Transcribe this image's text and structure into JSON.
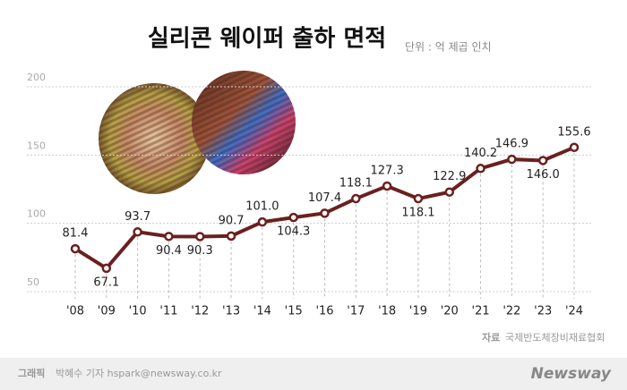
{
  "chart_data": {
    "type": "line",
    "title": "실리콘 웨이퍼 출하 면적",
    "subtitle": "단위 : 억 제곱 인치",
    "categories": [
      "'08",
      "'09",
      "'10",
      "'11",
      "'12",
      "'13",
      "'14",
      "'15",
      "'16",
      "'17",
      "'18",
      "'19",
      "'20",
      "'21",
      "'22",
      "'23",
      "'24"
    ],
    "series": [
      {
        "name": "실리콘 웨이퍼 출하 면적",
        "color": "#6b1f1f",
        "values": [
          81.4,
          67.1,
          93.7,
          90.4,
          90.3,
          90.7,
          101.0,
          104.3,
          107.4,
          118.1,
          127.3,
          118.1,
          122.9,
          140.2,
          146.9,
          146.0,
          155.6
        ],
        "value_labels": [
          "81.4",
          "67.1",
          "93.7",
          "90.4",
          "90.3",
          "90.7",
          "101.0",
          "104.3",
          "107.4",
          "118.1",
          "127.3",
          "118.1",
          "122.9",
          "140.2",
          "146.9",
          "146.0",
          "155.6"
        ]
      }
    ],
    "ylim": [
      50,
      200
    ],
    "yticks": [
      50,
      100,
      150,
      200
    ],
    "grid": true
  },
  "source": {
    "label": "자료",
    "text": "국제반도체장비재료협회"
  },
  "footer": {
    "label": "그래픽",
    "credit": "박혜수 기자 hspark@newsway.co.kr",
    "logo": "Newsway"
  }
}
